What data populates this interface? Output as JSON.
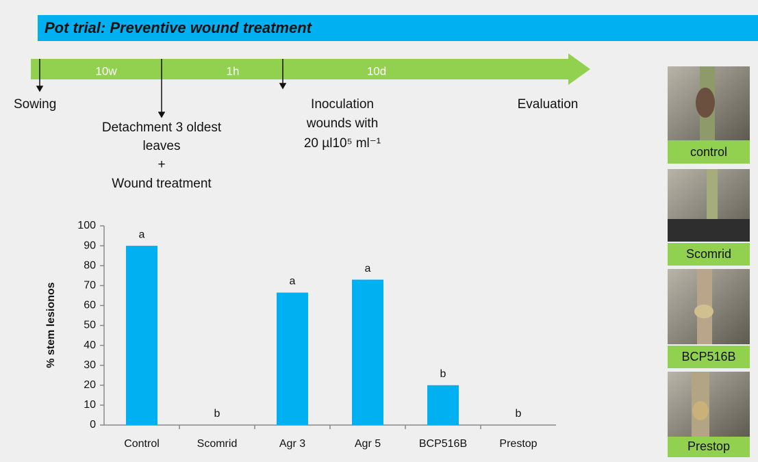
{
  "slide": {
    "title": "Pot trial: Preventive wound treatment",
    "timeline": {
      "periods": [
        "10w",
        "1h",
        "10d"
      ],
      "events": [
        [
          "Sowing"
        ],
        [
          "Detachment 3 oldest",
          "leaves",
          "+",
          "Wound treatment"
        ],
        [
          "Inoculation",
          "wounds with",
          "20 µl10⁵ ml⁻¹"
        ],
        [
          "Evaluation"
        ]
      ]
    },
    "photos": [
      "control",
      "Scomrid",
      "BCP516B",
      "Prestop"
    ]
  },
  "chart_data": {
    "type": "bar",
    "y_label": "% stem lesionos",
    "categories": [
      "Control",
      "Scomrid",
      "Agr 3",
      "Agr 5",
      "BCP516B",
      "Prestop"
    ],
    "values": [
      90,
      0,
      66.5,
      73,
      20,
      0
    ],
    "significance": [
      "a",
      "b",
      "a",
      "a",
      "b",
      "b"
    ],
    "color": "#00b0f0",
    "ylim": [
      0,
      100
    ],
    "yticks": [
      0,
      10,
      20,
      30,
      40,
      50,
      60,
      70,
      80,
      90,
      100
    ],
    "grid": false
  }
}
